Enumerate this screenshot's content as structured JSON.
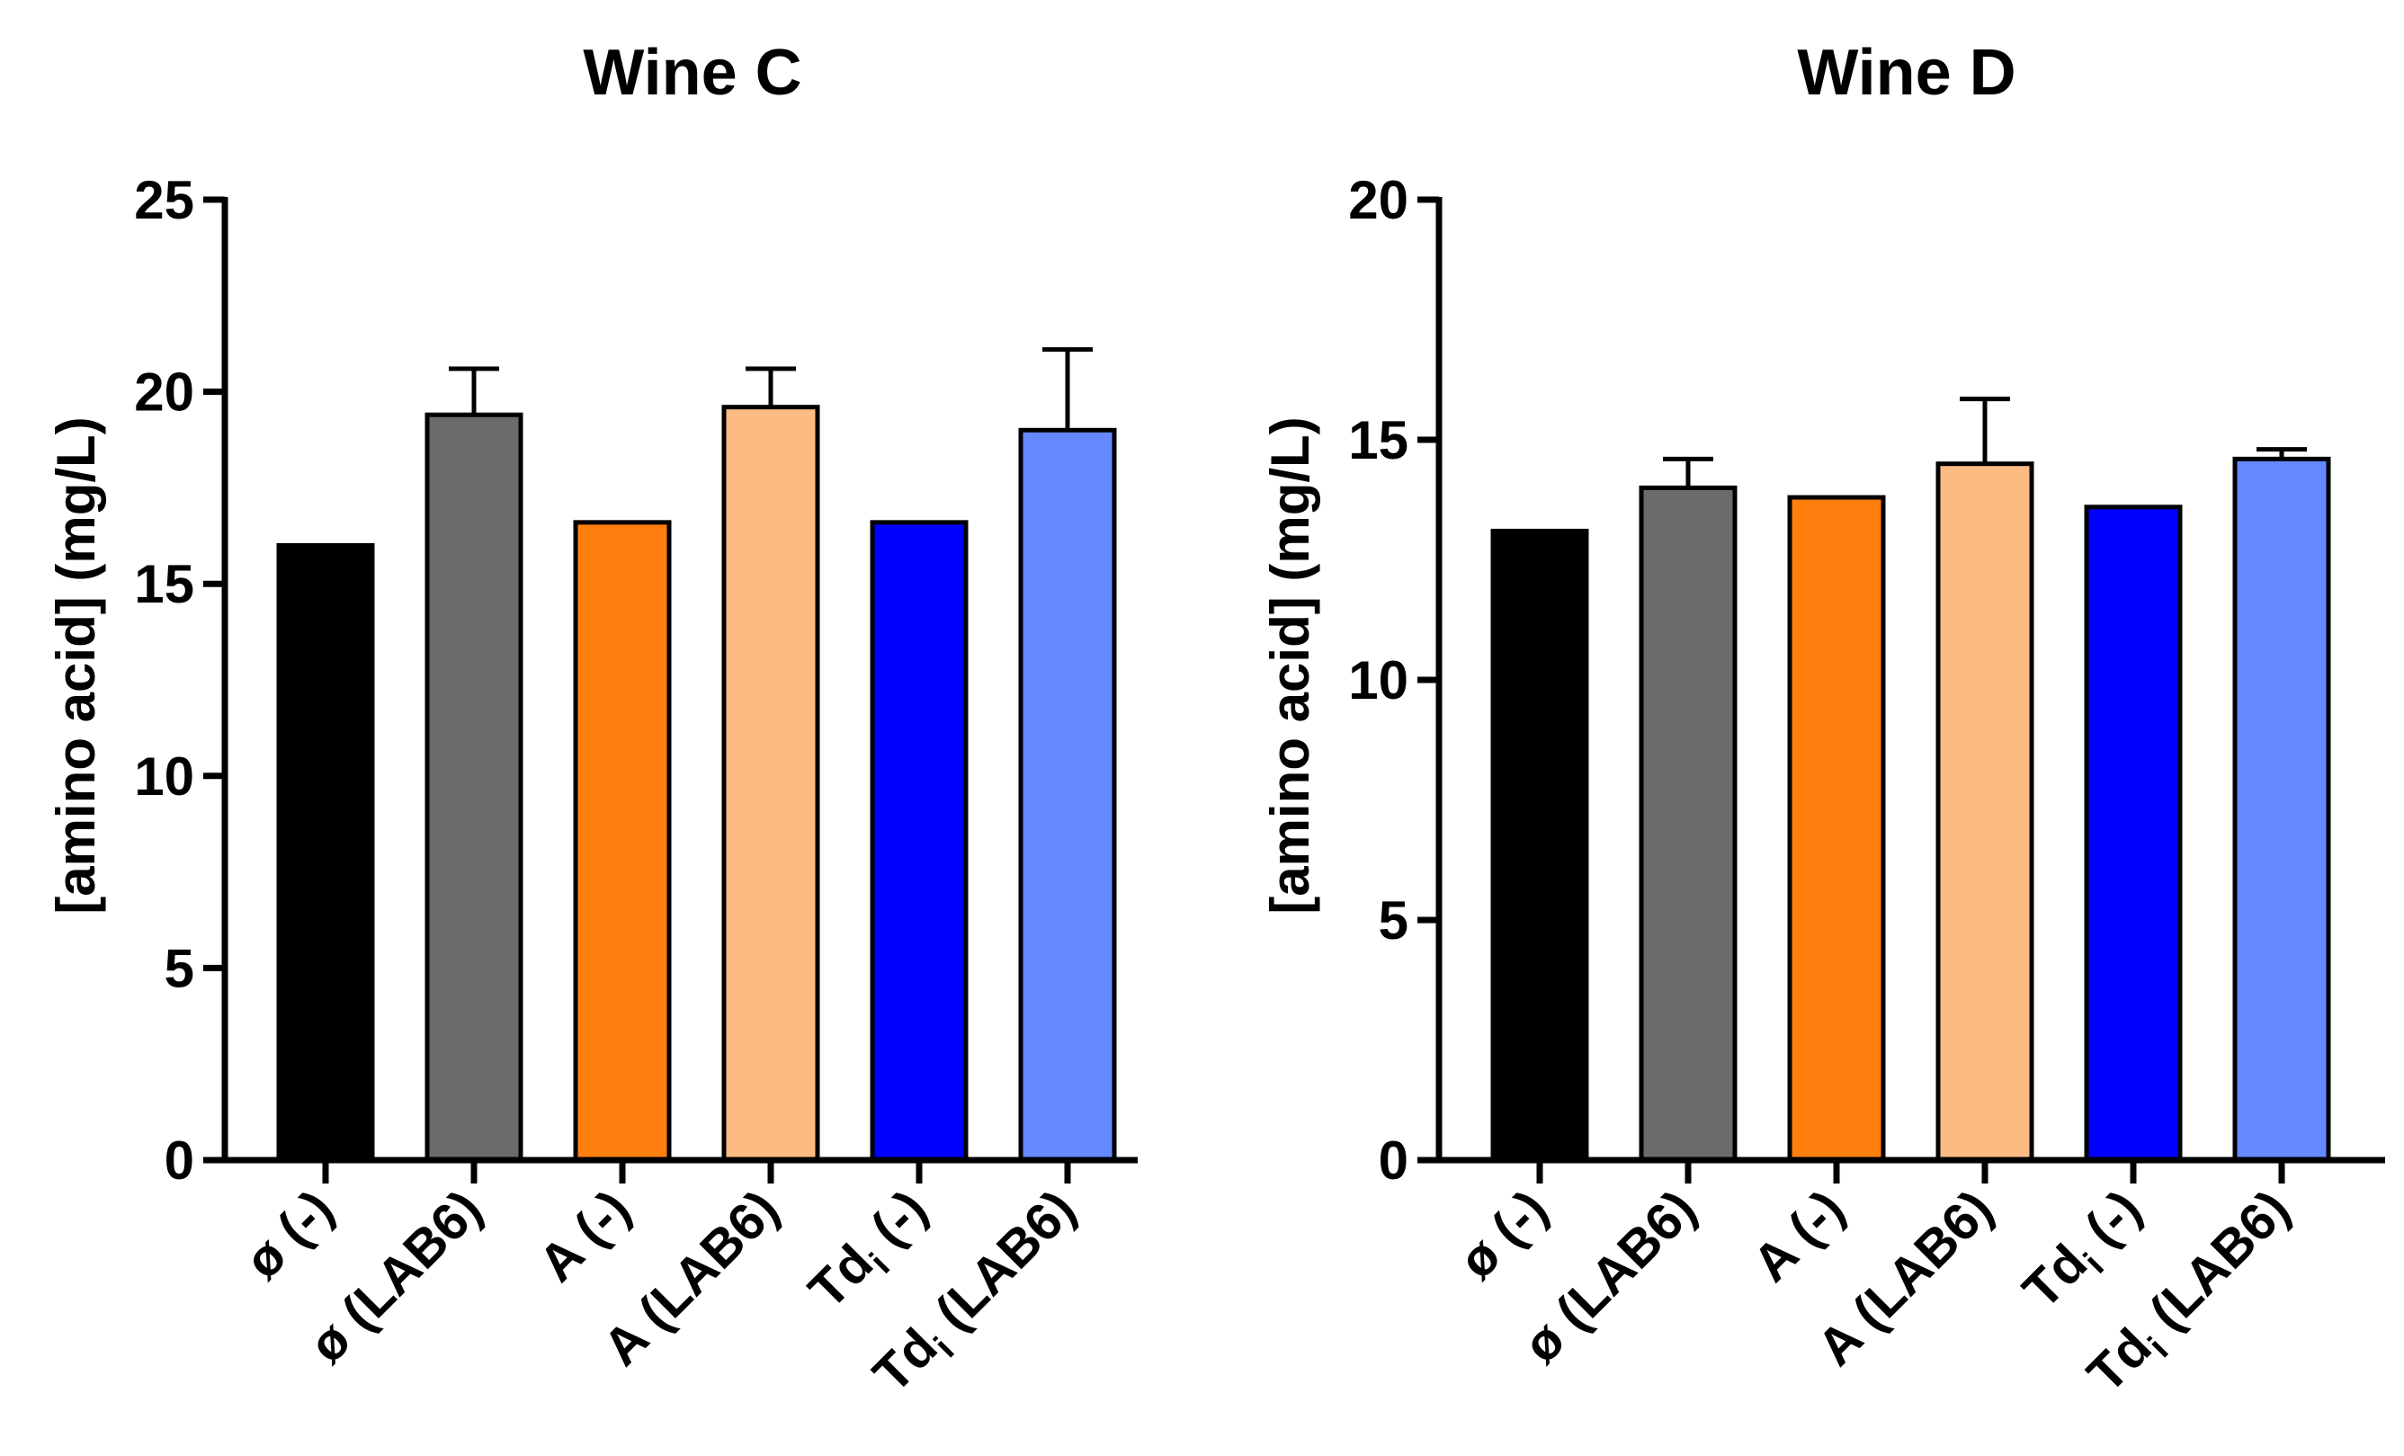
{
  "chart_data": [
    {
      "type": "bar",
      "title": "Wine C",
      "xlabel": "",
      "ylabel": "[amino acid] (mg/L)",
      "ylim": [
        0,
        25
      ],
      "yticks": [
        0,
        5,
        10,
        15,
        20,
        25
      ],
      "categories": [
        {
          "main": "ø (-)",
          "sub": ""
        },
        {
          "main": "ø (LAB6)",
          "sub": ""
        },
        {
          "main": "A (-)",
          "sub": ""
        },
        {
          "main": "A (LAB6)",
          "sub": ""
        },
        {
          "main": "Td",
          "sub": "i",
          "rest": " (-)"
        },
        {
          "main": "Td",
          "sub": "i",
          "rest": " (LAB6)"
        }
      ],
      "values": [
        16.0,
        19.4,
        16.6,
        19.6,
        16.6,
        19.0
      ],
      "errors": [
        0,
        1.2,
        0,
        1.0,
        0,
        2.1
      ],
      "colors": [
        "#000000",
        "#6b6b6b",
        "#ff7f0e",
        "#fdbb84",
        "#0000ff",
        "#6688ff"
      ]
    },
    {
      "type": "bar",
      "title": "Wine D",
      "xlabel": "",
      "ylabel": "[amino acid] (mg/L)",
      "ylim": [
        0,
        20
      ],
      "yticks": [
        0,
        5,
        10,
        15,
        20
      ],
      "categories": [
        {
          "main": "ø (-)",
          "sub": ""
        },
        {
          "main": "ø (LAB6)",
          "sub": ""
        },
        {
          "main": "A (-)",
          "sub": ""
        },
        {
          "main": "A (LAB6)",
          "sub": ""
        },
        {
          "main": "Td",
          "sub": "i",
          "rest": " (-)"
        },
        {
          "main": "Td",
          "sub": "i",
          "rest": " (LAB6)"
        }
      ],
      "values": [
        13.1,
        14.0,
        13.8,
        14.5,
        13.6,
        14.6
      ],
      "errors": [
        0,
        0.6,
        0,
        1.35,
        0,
        0.2
      ],
      "colors": [
        "#000000",
        "#6b6b6b",
        "#ff7f0e",
        "#fdbb84",
        "#0000ff",
        "#6688ff"
      ]
    }
  ]
}
